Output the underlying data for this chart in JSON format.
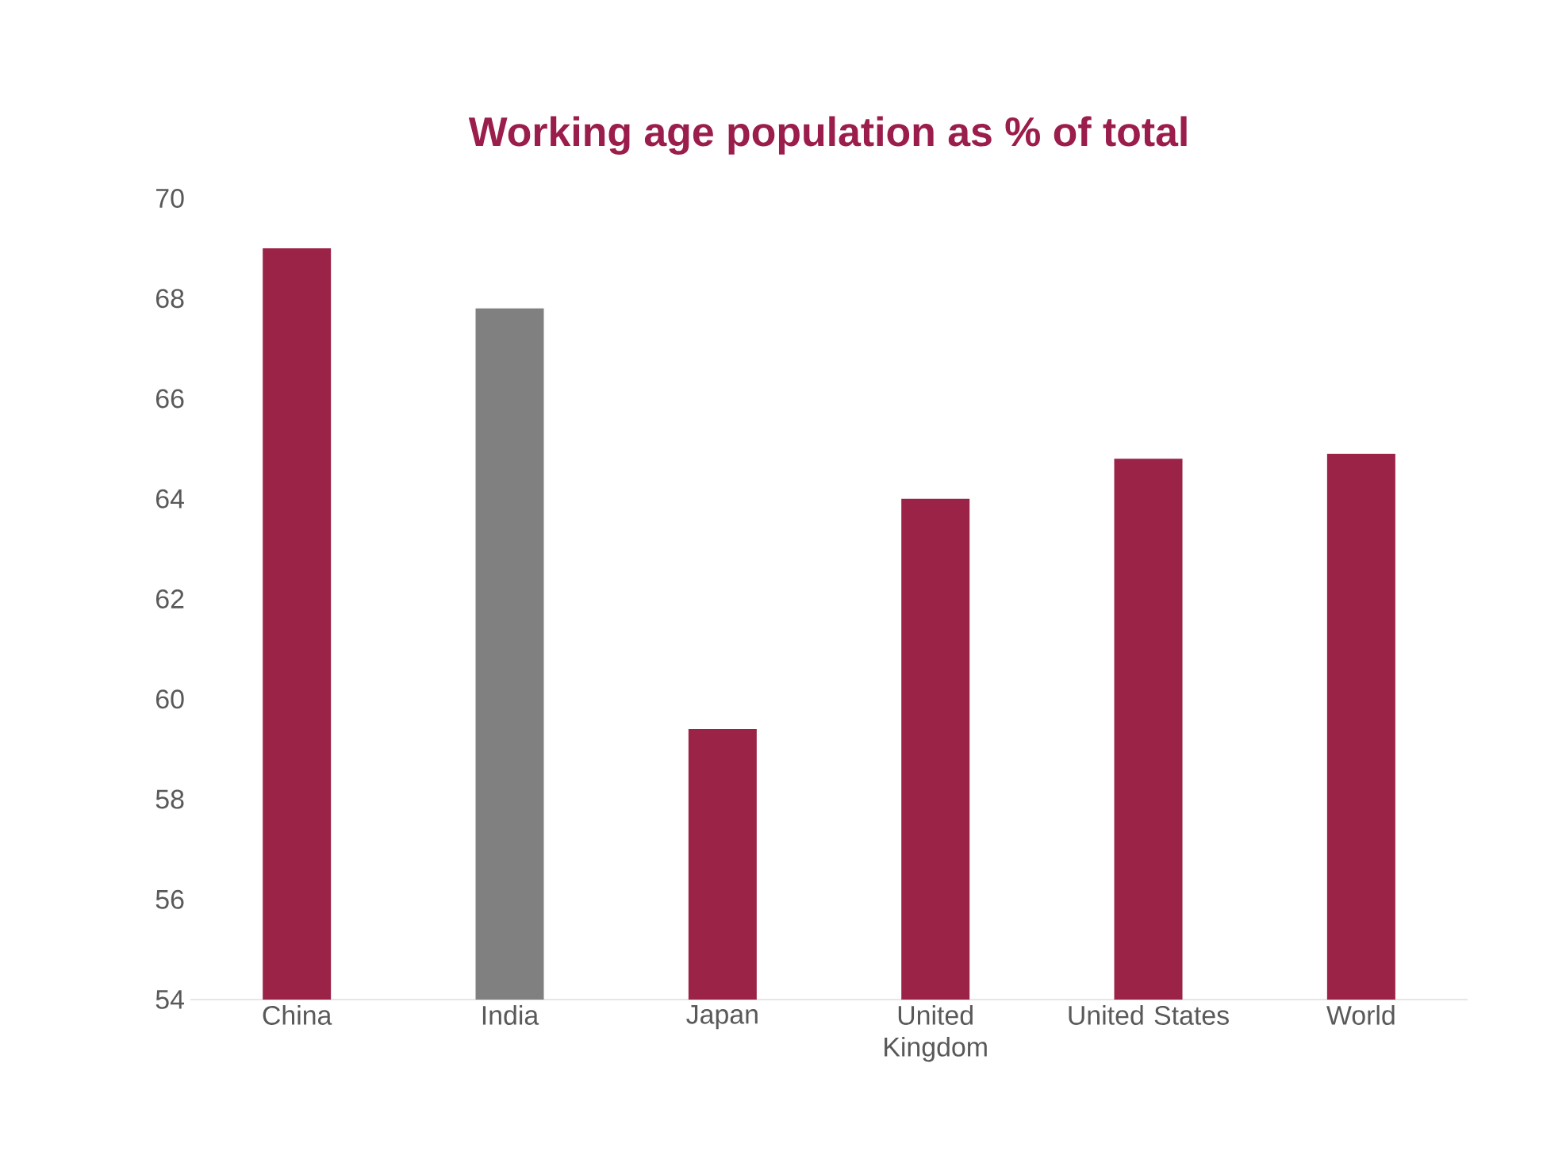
{
  "chart_data": {
    "type": "bar",
    "title": "Working age population as % of total",
    "categories": [
      "China",
      "India",
      "Japan",
      "United Kingdom",
      "United States",
      "World"
    ],
    "values": [
      69.0,
      67.8,
      59.4,
      64.0,
      64.8,
      64.9
    ],
    "colors": [
      "#9b2348",
      "#808080",
      "#9b2348",
      "#9b2348",
      "#9b2348",
      "#9b2348"
    ],
    "ylim": [
      54,
      70
    ],
    "yticks": [
      54,
      56,
      58,
      60,
      62,
      64,
      66,
      68,
      70
    ]
  }
}
